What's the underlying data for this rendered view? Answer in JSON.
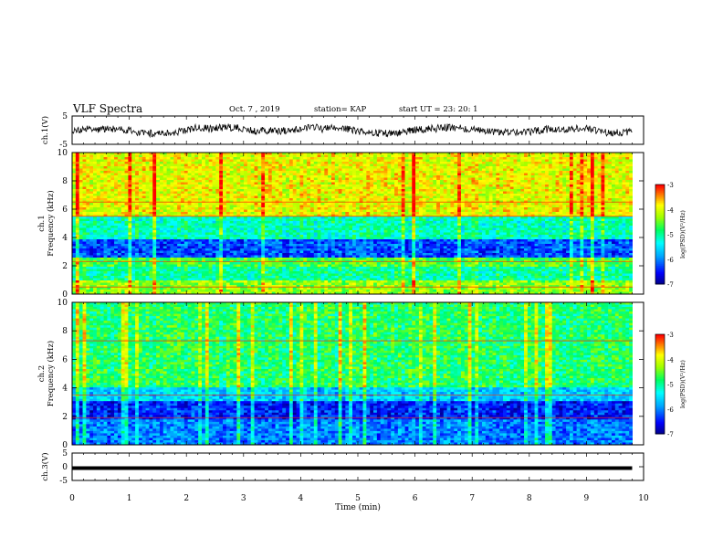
{
  "header": {
    "title": "VLF Spectra",
    "date": "Oct. 7 , 2019",
    "station": "station= KAP",
    "start": "start  UT =   23: 20: 1"
  },
  "colors": {
    "colormap": [
      "#000080",
      "#0000ff",
      "#00a0ff",
      "#00ffff",
      "#00ff60",
      "#a0ff00",
      "#ffff00",
      "#ff8000",
      "#ff0000",
      "#ffffff"
    ]
  },
  "chart_data": [
    {
      "type": "line",
      "id": "ch1-waveform",
      "ylabel": "ch.1(V)",
      "ylim": [
        -5,
        5
      ],
      "yticks": [
        "5",
        "-5"
      ],
      "xlim": [
        0,
        10
      ],
      "description_values": {
        "baseline": 0,
        "amplitude_range": [
          -2.5,
          2.5
        ]
      }
    },
    {
      "type": "heatmap",
      "id": "ch1-spectrogram",
      "ylabel": "ch.1\nFrequency (kHz)",
      "ylim": [
        0,
        10
      ],
      "yticks": [
        "0",
        "2",
        "4",
        "6",
        "8",
        "10"
      ],
      "xlim": [
        0,
        10
      ],
      "colorbar": {
        "label": "log(PSD)(V²/Hz)",
        "range": [
          -7,
          -3
        ],
        "ticks": [
          "-3",
          "-4",
          "-5",
          "-6",
          "-7"
        ]
      },
      "bands": [
        {
          "freq": [
            0,
            1
          ],
          "level": -4.3
        },
        {
          "freq": [
            1,
            2
          ],
          "level": -5.0
        },
        {
          "freq": [
            2,
            2.5
          ],
          "level": -4.6
        },
        {
          "freq": [
            2.5,
            3.8
          ],
          "level": -6.2
        },
        {
          "freq": [
            3.8,
            5.5
          ],
          "level": -5.1
        },
        {
          "freq": [
            5.5,
            10
          ],
          "level": -3.9
        }
      ],
      "lines_khz": [
        0.5,
        2.3,
        5.5,
        6.5
      ]
    },
    {
      "type": "heatmap",
      "id": "ch2-spectrogram",
      "ylabel": "ch.2\nFrequency (kHz)",
      "ylim": [
        0,
        10
      ],
      "yticks": [
        "0",
        "2",
        "4",
        "6",
        "8",
        "10"
      ],
      "xlim": [
        0,
        10
      ],
      "colorbar": {
        "label": "log(PSD)(V²/Hz)",
        "range": [
          -7,
          -3
        ],
        "ticks": [
          "-3",
          "-4",
          "-5",
          "-6",
          "-7"
        ]
      },
      "bands": [
        {
          "freq": [
            0,
            1.8
          ],
          "level": -6.0
        },
        {
          "freq": [
            1.8,
            3.0
          ],
          "level": -6.4
        },
        {
          "freq": [
            3.0,
            4.0
          ],
          "level": -5.6
        },
        {
          "freq": [
            4.0,
            10
          ],
          "level": -4.8
        }
      ],
      "lines_khz": [
        1.9,
        3.5,
        7.3
      ]
    },
    {
      "type": "line",
      "id": "ch3-waveform",
      "ylabel": "ch.3(V)",
      "ylim": [
        -5,
        5
      ],
      "yticks": [
        "5",
        "0",
        "-5"
      ],
      "xlim": [
        0,
        10
      ],
      "values": [
        {
          "x": 0,
          "y": -0.5
        },
        {
          "x": 9.8,
          "y": -0.5
        }
      ]
    }
  ],
  "xaxis": {
    "label": "Time  (min)",
    "ticks": [
      "0",
      "1",
      "2",
      "3",
      "4",
      "5",
      "6",
      "7",
      "8",
      "9",
      "10"
    ]
  }
}
